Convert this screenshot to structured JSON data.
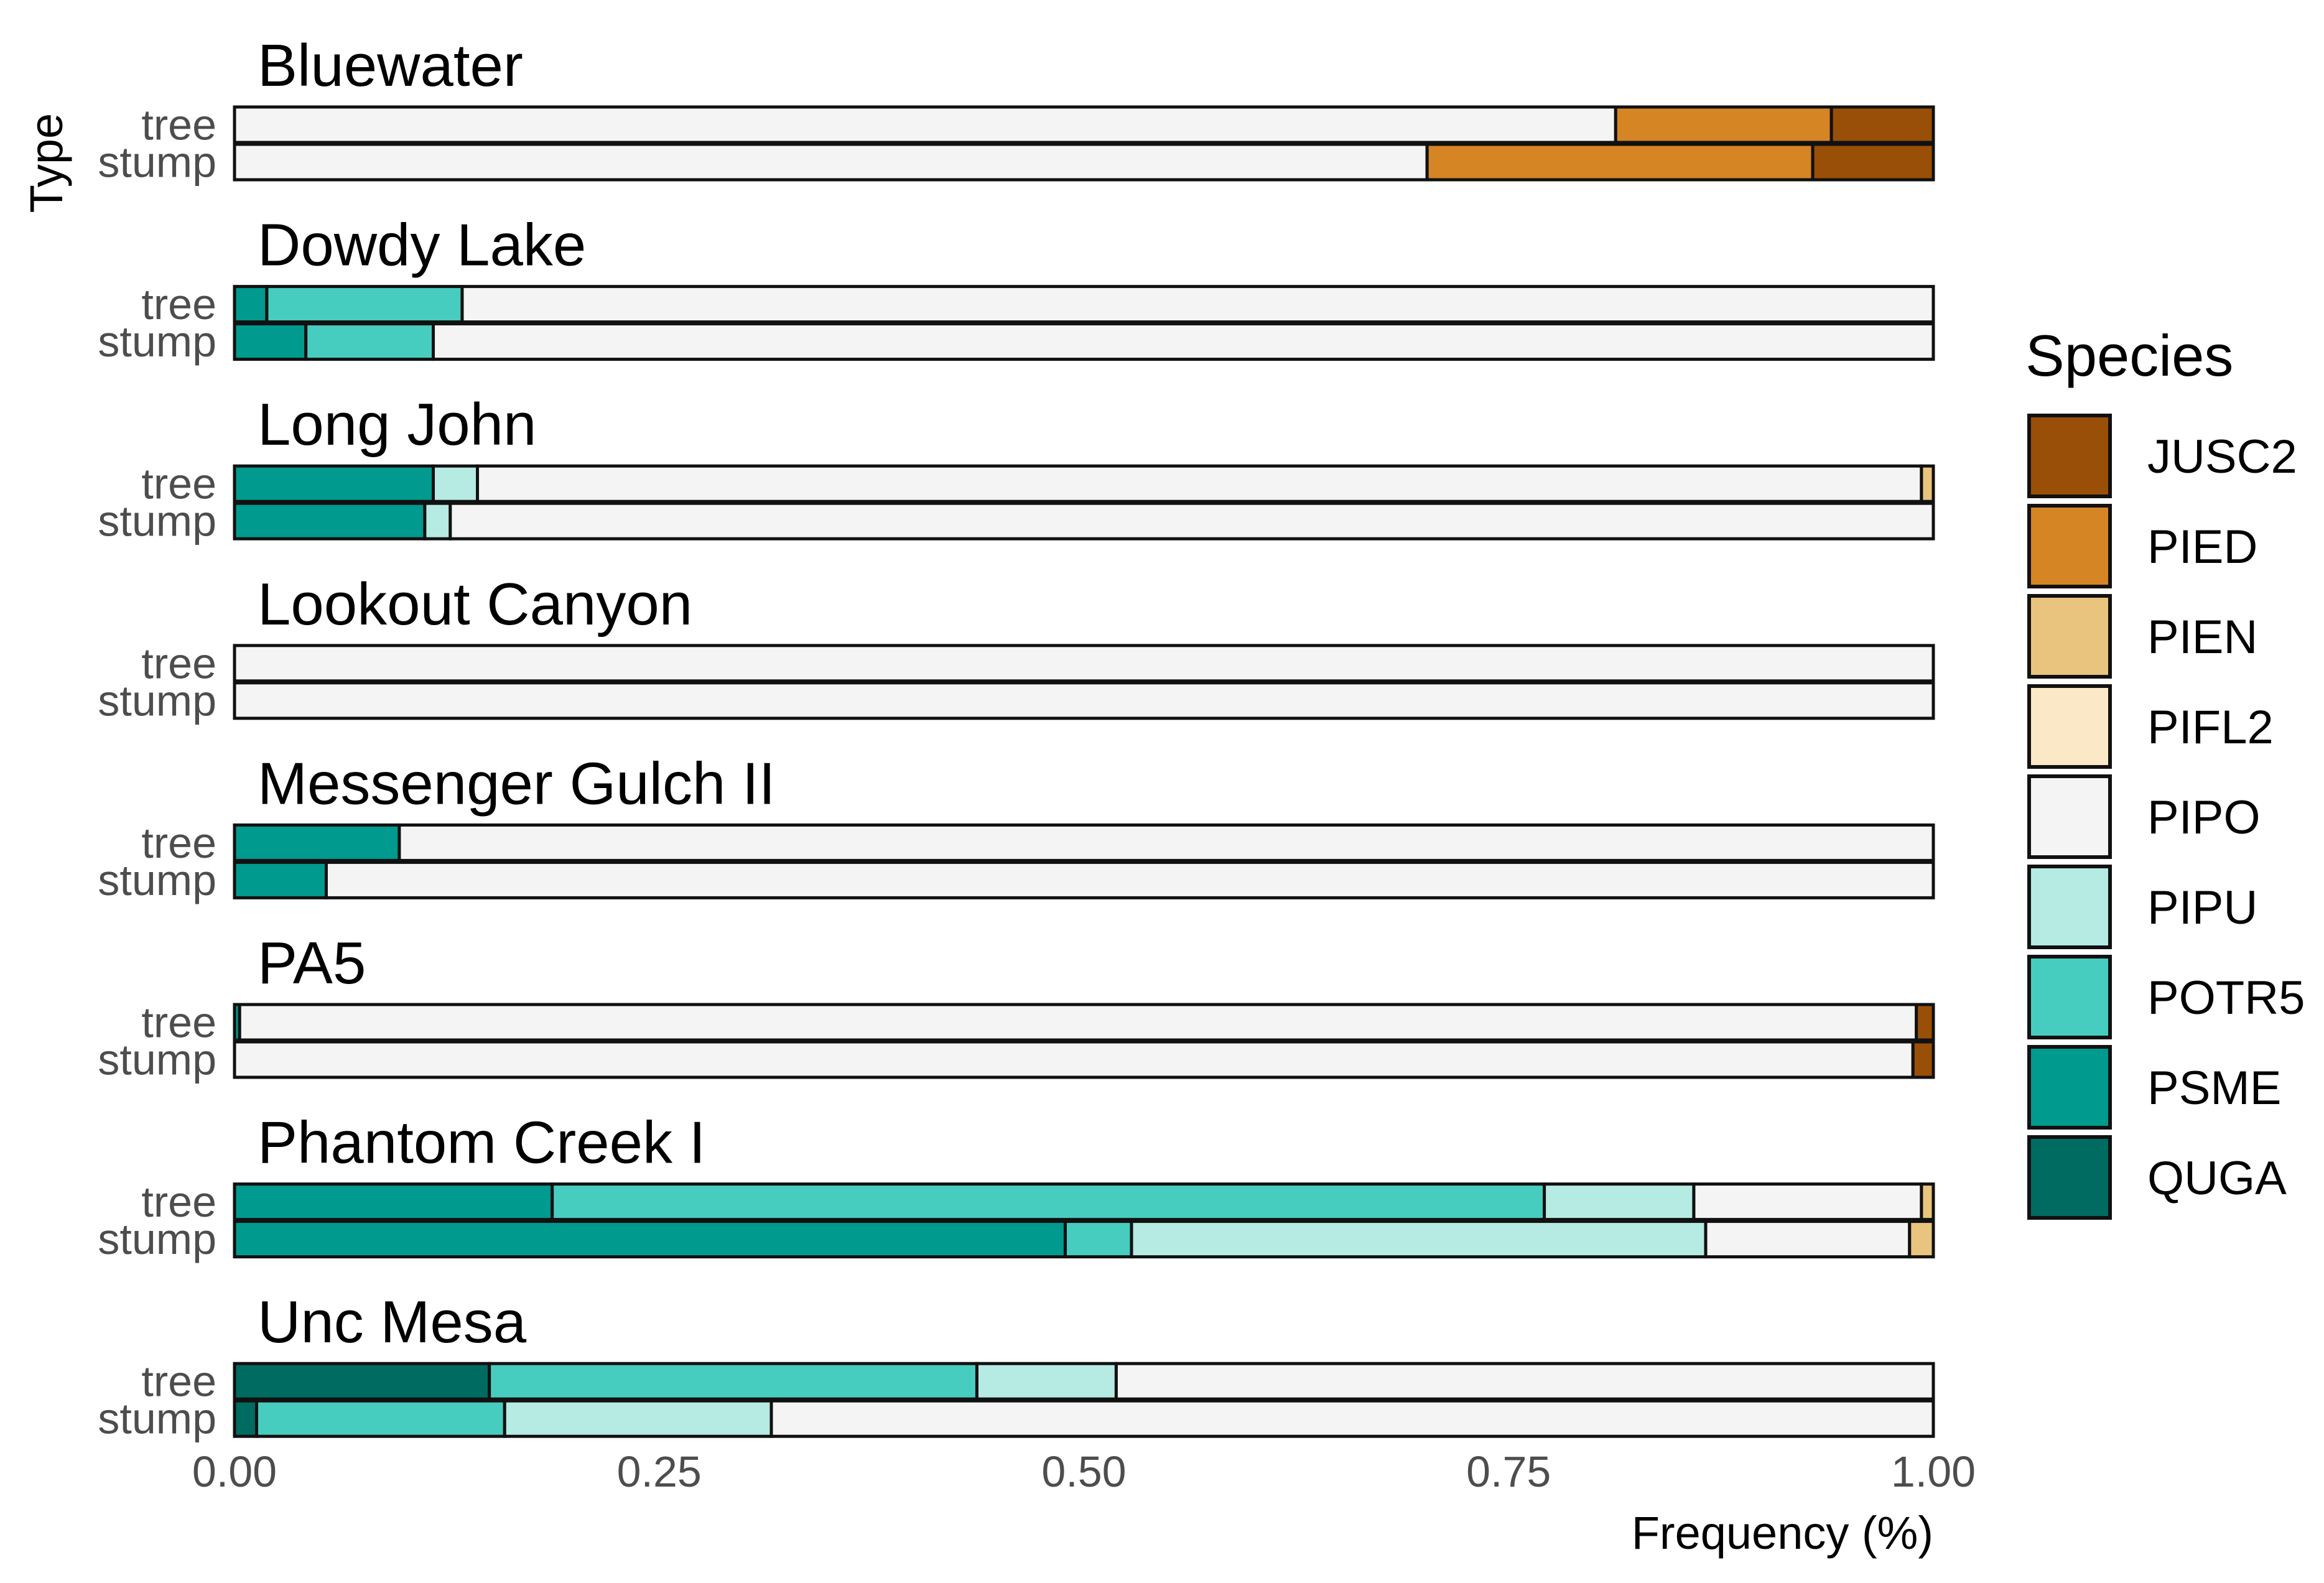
{
  "chart_data": {
    "type": "bar",
    "orientation": "horizontal-stacked",
    "xlabel": "Frequency (%)",
    "ylabel": "Type",
    "xlim": [
      0,
      1
    ],
    "xticks": [
      "0.00",
      "0.25",
      "0.50",
      "0.75",
      "1.00"
    ],
    "xtick_values": [
      0,
      0.25,
      0.5,
      0.75,
      1.0
    ],
    "legend_title": "Species",
    "legend_position": "right",
    "legend_order": [
      "JUSC2",
      "PIED",
      "PIEN",
      "PIFL2",
      "PIPO",
      "PIPU",
      "POTR5",
      "PSME",
      "QUGA"
    ],
    "colors": {
      "JUSC2": "#9a4f08",
      "PIED": "#d58524",
      "PIEN": "#e9c47f",
      "PIFL2": "#fbe8c6",
      "PIPO": "#f4f4f4",
      "PIPU": "#b5ebe3",
      "POTR5": "#47cdbf",
      "PSME": "#009a8e",
      "QUGA": "#006b60"
    },
    "stack_order": [
      "QUGA",
      "PSME",
      "POTR5",
      "PIPU",
      "PIPO",
      "PIFL2",
      "PIEN",
      "PIED",
      "JUSC2"
    ],
    "panels": [
      {
        "site": "Bluewater",
        "rows": [
          {
            "type": "tree",
            "values": {
              "PIPO": 0.813,
              "PIED": 0.127,
              "JUSC2": 0.06
            }
          },
          {
            "type": "stump",
            "values": {
              "PIPO": 0.702,
              "PIED": 0.227,
              "JUSC2": 0.071
            }
          }
        ]
      },
      {
        "site": "Dowdy Lake",
        "rows": [
          {
            "type": "tree",
            "values": {
              "PSME": 0.019,
              "POTR5": 0.115,
              "PIPO": 0.866
            }
          },
          {
            "type": "stump",
            "values": {
              "PSME": 0.042,
              "POTR5": 0.075,
              "PIPO": 0.883
            }
          }
        ]
      },
      {
        "site": "Long John",
        "rows": [
          {
            "type": "tree",
            "values": {
              "PSME": 0.117,
              "PIPU": 0.026,
              "PIPO": 0.85,
              "PIEN": 0.007
            }
          },
          {
            "type": "stump",
            "values": {
              "PSME": 0.112,
              "PIPU": 0.015,
              "PIPO": 0.873
            }
          }
        ]
      },
      {
        "site": "Lookout Canyon",
        "rows": [
          {
            "type": "tree",
            "values": {
              "PIPO": 1.0
            }
          },
          {
            "type": "stump",
            "values": {
              "PIPO": 1.0
            }
          }
        ]
      },
      {
        "site": "Messenger Gulch II",
        "rows": [
          {
            "type": "tree",
            "values": {
              "PSME": 0.097,
              "PIPO": 0.903
            }
          },
          {
            "type": "stump",
            "values": {
              "PSME": 0.054,
              "PIPO": 0.946
            }
          }
        ]
      },
      {
        "site": "PA5",
        "rows": [
          {
            "type": "tree",
            "values": {
              "PSME": 0.003,
              "PIPO": 0.987,
              "JUSC2": 0.01
            }
          },
          {
            "type": "stump",
            "values": {
              "PIPO": 0.988,
              "JUSC2": 0.012
            }
          }
        ]
      },
      {
        "site": "Phantom Creek I",
        "rows": [
          {
            "type": "tree",
            "values": {
              "PSME": 0.187,
              "POTR5": 0.584,
              "PIPU": 0.088,
              "PIPO": 0.134,
              "PIEN": 0.007
            }
          },
          {
            "type": "stump",
            "values": {
              "PSME": 0.489,
              "POTR5": 0.039,
              "PIPU": 0.338,
              "PIPO": 0.12,
              "PIEN": 0.014
            }
          }
        ]
      },
      {
        "site": "Unc Mesa",
        "rows": [
          {
            "type": "tree",
            "values": {
              "QUGA": 0.15,
              "POTR5": 0.287,
              "PIPU": 0.082,
              "PIPO": 0.481
            }
          },
          {
            "type": "stump",
            "values": {
              "QUGA": 0.013,
              "POTR5": 0.146,
              "PIPU": 0.157,
              "PIPO": 0.684
            }
          }
        ]
      }
    ]
  }
}
